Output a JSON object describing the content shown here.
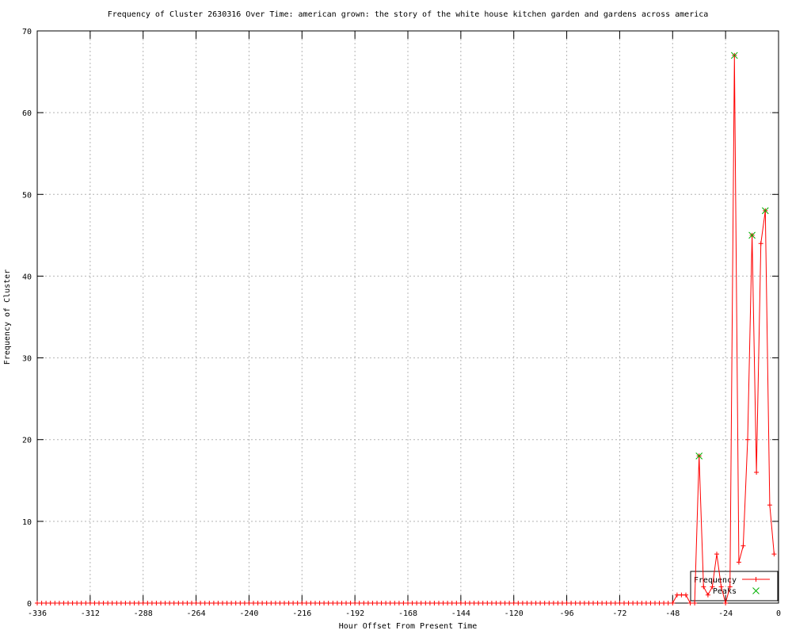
{
  "chart_data": {
    "type": "line",
    "title": "Frequency of Cluster 2630316 Over Time: american grown: the story of the white house kitchen garden and gardens across america",
    "xlabel": "Hour Offset From Present Time",
    "ylabel": "Frequency of Cluster",
    "xlim": [
      -336,
      0
    ],
    "ylim": [
      0,
      70
    ],
    "xticks": [
      -336,
      -312,
      -288,
      -264,
      -240,
      -216,
      -192,
      -168,
      -144,
      -120,
      -96,
      -72,
      -48,
      -24,
      0
    ],
    "yticks": [
      0,
      10,
      20,
      30,
      40,
      50,
      60,
      70
    ],
    "grid": true,
    "legend_position": "bottom-right-inside",
    "legend": [
      {
        "label": "Frequency",
        "marker": "plus",
        "color": "#ff0000"
      },
      {
        "label": "Peaks",
        "marker": "cross",
        "color": "#00b000"
      }
    ],
    "series": [
      {
        "name": "Frequency",
        "type": "line+marker",
        "color": "#ff0000",
        "zero_run": {
          "from": -336,
          "to": -52,
          "step": 2,
          "value": 0
        },
        "points": [
          [
            -50,
            0
          ],
          [
            -48,
            0
          ],
          [
            -46,
            1
          ],
          [
            -44,
            1
          ],
          [
            -42,
            1
          ],
          [
            -40,
            0
          ],
          [
            -38,
            0
          ],
          [
            -36,
            18
          ],
          [
            -34,
            2
          ],
          [
            -32,
            1
          ],
          [
            -30,
            2
          ],
          [
            -28,
            6
          ],
          [
            -26,
            2
          ],
          [
            -24,
            0
          ],
          [
            -22,
            2
          ],
          [
            -20,
            67
          ],
          [
            -18,
            5
          ],
          [
            -16,
            7
          ],
          [
            -14,
            20
          ],
          [
            -12,
            45
          ],
          [
            -10,
            16
          ],
          [
            -8,
            44
          ],
          [
            -6,
            48
          ],
          [
            -4,
            12
          ],
          [
            -2,
            6
          ]
        ]
      },
      {
        "name": "Peaks",
        "type": "scatter",
        "color": "#00b000",
        "points": [
          [
            -36,
            18
          ],
          [
            -20,
            67
          ],
          [
            -12,
            45
          ],
          [
            -6,
            48
          ]
        ]
      }
    ]
  },
  "colors": {
    "background": "#ffffff",
    "border": "#000000",
    "grid": "#b4b4b4",
    "text": "#000000"
  }
}
